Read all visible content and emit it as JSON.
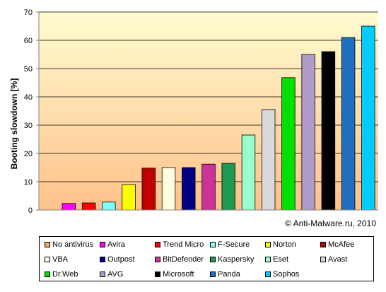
{
  "chart_data": {
    "type": "bar",
    "ylabel": "Booting slowdown [%]",
    "xlabel": "",
    "ylim": [
      0,
      70
    ],
    "yticks": [
      "0",
      "10",
      "20",
      "30",
      "40",
      "50",
      "60",
      "70"
    ],
    "grid": true,
    "legend_position": "bottom",
    "credit": "© Anti-Malware.ru,  2010",
    "categories": [
      "No antivirus",
      "Avira",
      "Trend Micro",
      "F-Secure",
      "Norton",
      "McAfee",
      "VBA",
      "Outpost",
      "BitDefender",
      "Kaspersky",
      "Eset",
      "Avast",
      "Dr.Web",
      "AVG",
      "Microsoft",
      "Panda",
      "Sophos"
    ],
    "values": [
      0,
      2.3,
      2.5,
      2.8,
      9,
      14.8,
      15,
      15,
      16.2,
      16.5,
      26.5,
      35.5,
      46.8,
      55,
      56,
      61,
      65
    ],
    "colors": [
      "#F4A460",
      "#FF00FF",
      "#FF0000",
      "#7FFFFF",
      "#FFFF00",
      "#C00000",
      "#FFFDE0",
      "#000080",
      "#CC3399",
      "#1E9A50",
      "#99FFCC",
      "#D9D9D9",
      "#00E000",
      "#B09CC8",
      "#000000",
      "#1F6FC0",
      "#00CCFF"
    ]
  }
}
